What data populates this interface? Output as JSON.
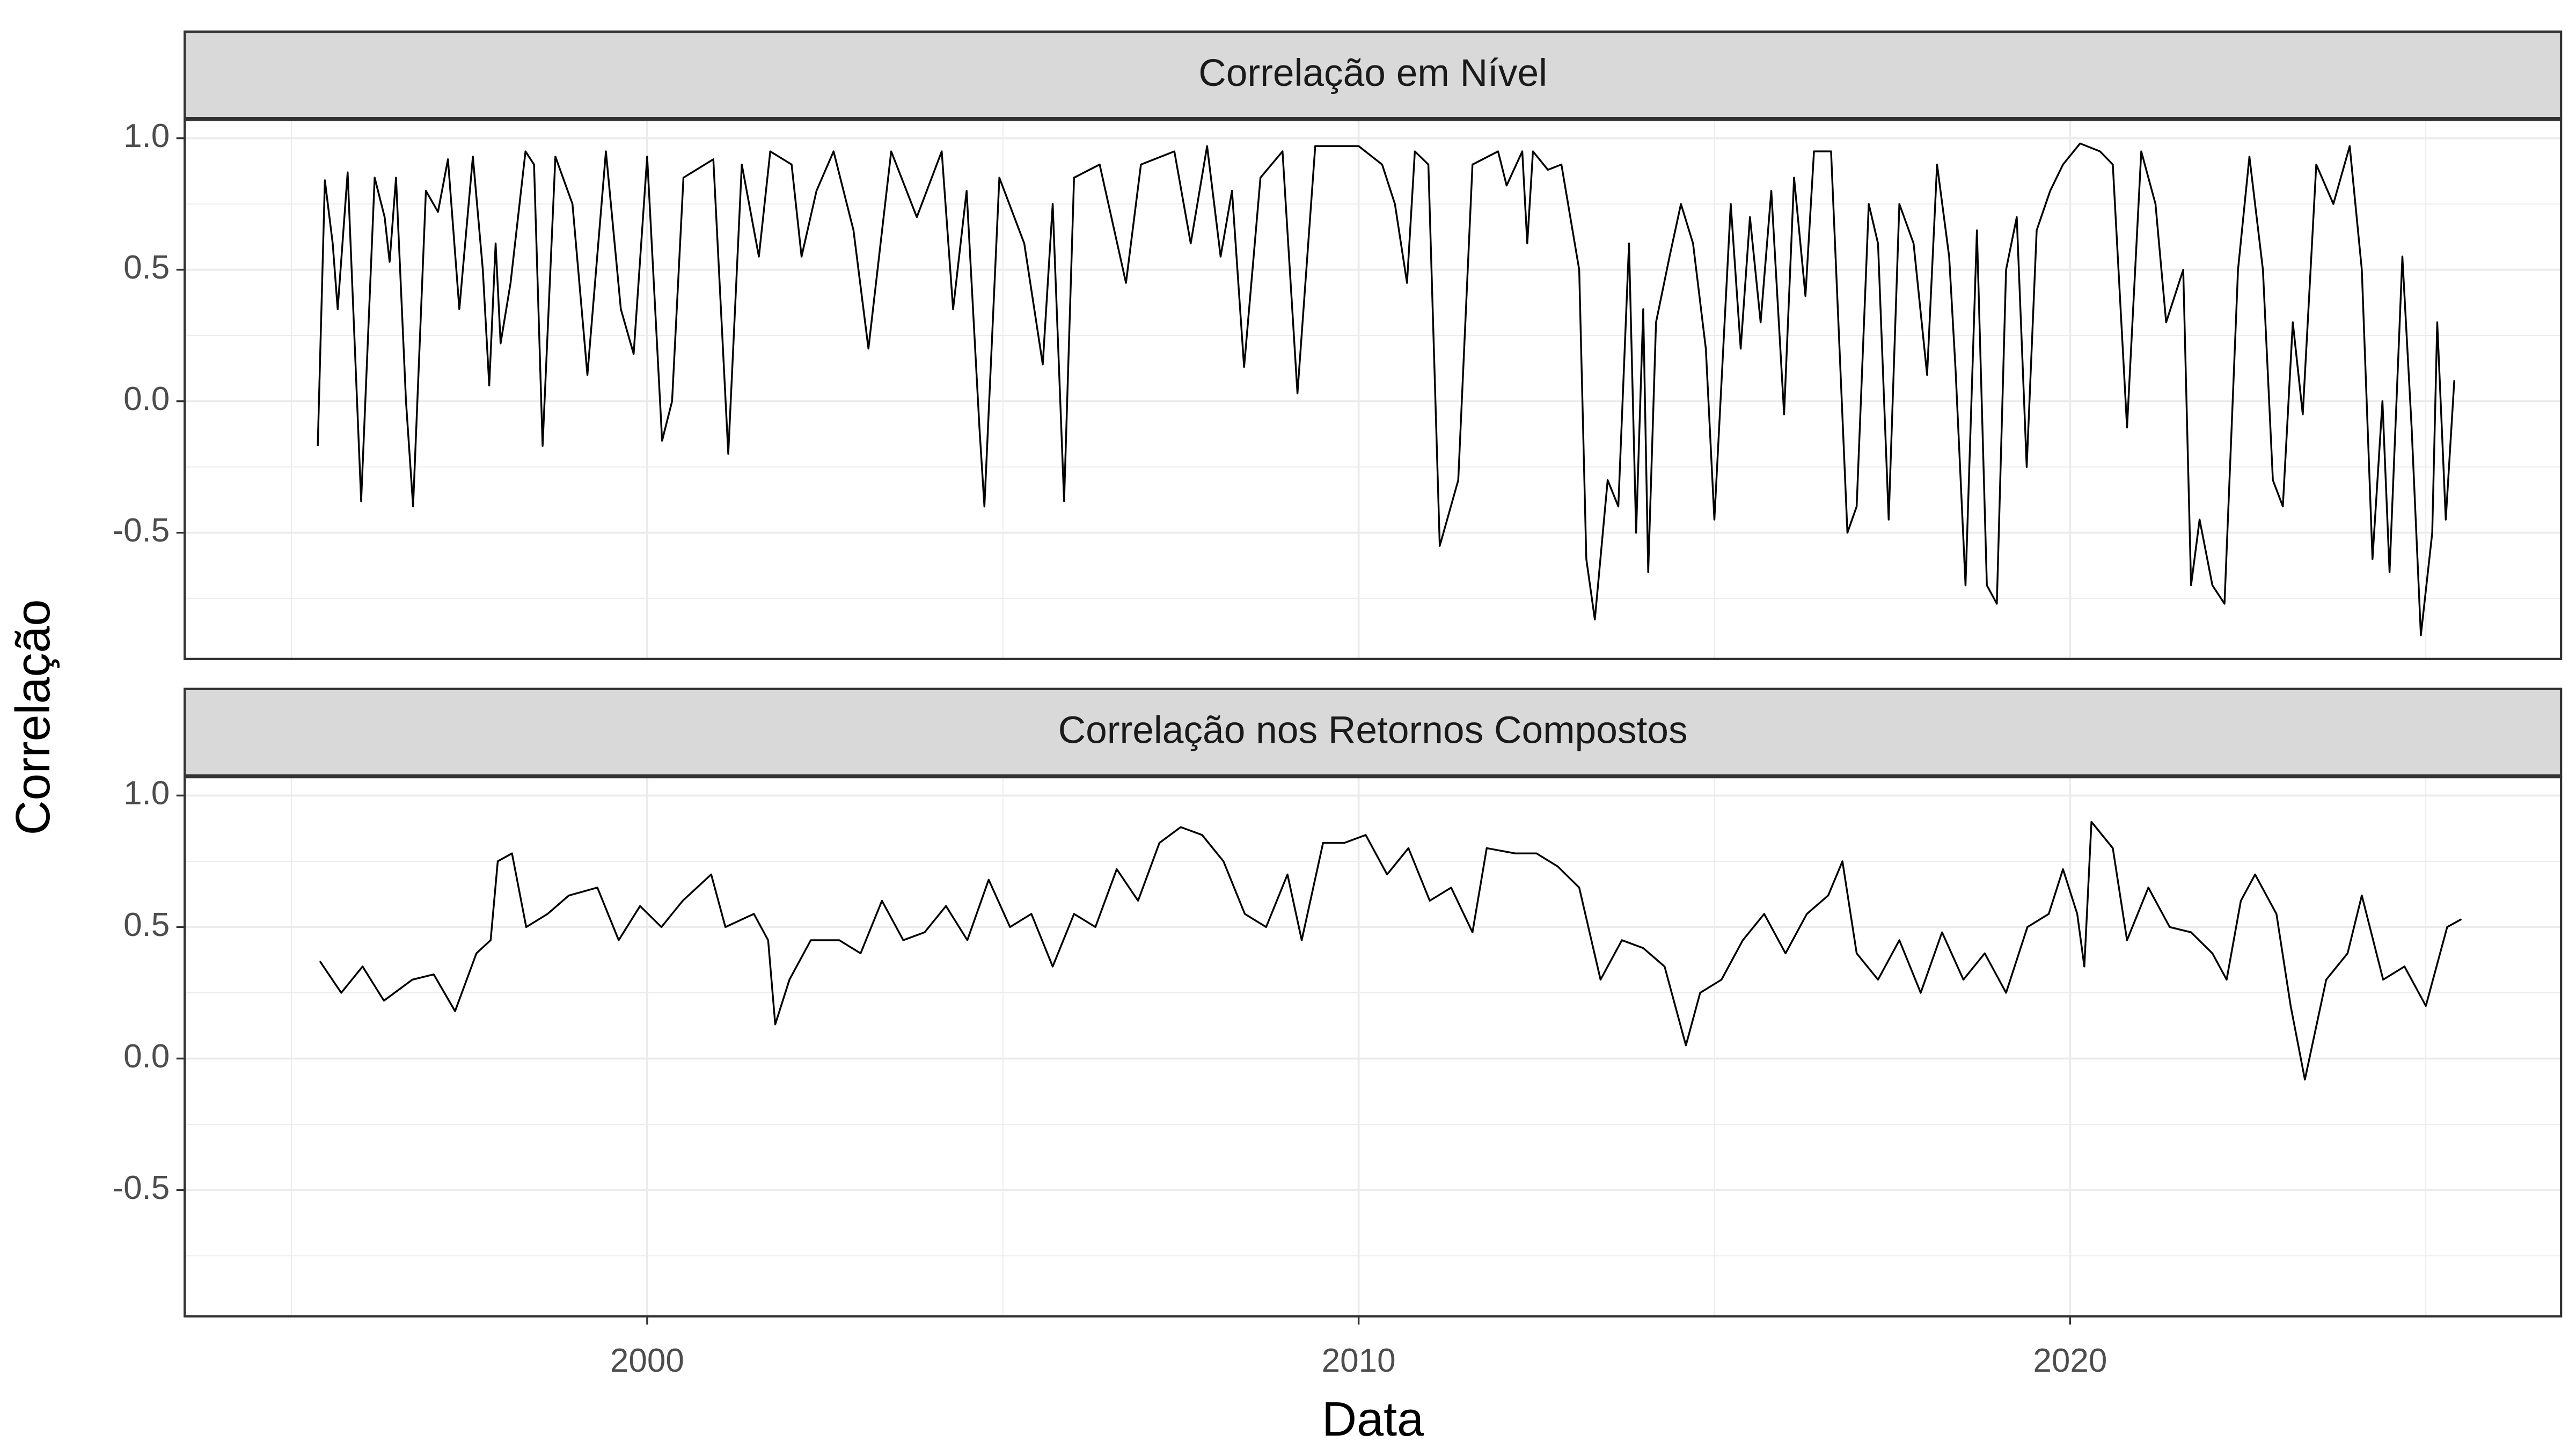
{
  "chart_data": [
    {
      "type": "line",
      "title": "Correlação em Nível",
      "ylabel": "Correlação",
      "color": "#000000",
      "xlim": [
        1993.5,
        2026.9
      ],
      "xticks": [
        2000,
        2010,
        2020
      ],
      "xminor": [
        1995,
        2005,
        2015,
        2025
      ],
      "ylim": [
        -0.98,
        1.07
      ],
      "yticks": [
        {
          "value": -0.5,
          "label": "-0.5"
        },
        {
          "value": 0,
          "label": "0.0"
        },
        {
          "value": 0.5,
          "label": "0.5"
        },
        {
          "value": 1,
          "label": "1.0"
        }
      ],
      "yminor": [
        -0.75,
        -0.25,
        0.25,
        0.75
      ],
      "grid": true,
      "x": [
        1995.37,
        1995.47,
        1995.58,
        1995.65,
        1995.79,
        1995.98,
        1996.17,
        1996.31,
        1996.38,
        1996.47,
        1996.61,
        1996.71,
        1996.89,
        1997.06,
        1997.2,
        1997.36,
        1997.55,
        1997.69,
        1997.78,
        1997.87,
        1997.94,
        1998.08,
        1998.29,
        1998.41,
        1998.53,
        1998.71,
        1998.95,
        1999.16,
        1999.42,
        1999.63,
        1999.81,
        2000.0,
        2000.21,
        2000.35,
        2000.51,
        2000.93,
        2001.14,
        2001.33,
        2001.57,
        2001.73,
        2002.03,
        2002.17,
        2002.38,
        2002.62,
        2002.9,
        2003.11,
        2003.43,
        2003.79,
        2004.14,
        2004.3,
        2004.49,
        2004.67,
        2004.74,
        2004.95,
        2005.3,
        2005.56,
        2005.7,
        2005.86,
        2006.0,
        2006.36,
        2006.73,
        2006.94,
        2007.41,
        2007.64,
        2007.87,
        2008.06,
        2008.22,
        2008.39,
        2008.62,
        2008.93,
        2009.14,
        2009.39,
        2010.0,
        2010.33,
        2010.51,
        2010.68,
        2010.79,
        2010.98,
        2011.14,
        2011.4,
        2011.5,
        2011.6,
        2011.96,
        2012.08,
        2012.3,
        2012.37,
        2012.45,
        2012.66,
        2012.85,
        2013.1,
        2013.2,
        2013.32,
        2013.5,
        2013.65,
        2013.8,
        2013.9,
        2014.0,
        2014.07,
        2014.18,
        2014.37,
        2014.53,
        2014.7,
        2014.88,
        2015.0,
        2015.23,
        2015.37,
        2015.5,
        2015.65,
        2015.8,
        2015.98,
        2016.12,
        2016.28,
        2016.4,
        2016.64,
        2016.87,
        2017.0,
        2017.17,
        2017.3,
        2017.45,
        2017.6,
        2017.8,
        2017.99,
        2018.13,
        2018.3,
        2018.39,
        2018.53,
        2018.69,
        2018.83,
        2018.97,
        2019.1,
        2019.25,
        2019.39,
        2019.53,
        2019.72,
        2019.9,
        2020.14,
        2020.42,
        2020.6,
        2020.8,
        2021.0,
        2021.2,
        2021.35,
        2021.59,
        2021.7,
        2021.82,
        2022.0,
        2022.17,
        2022.36,
        2022.52,
        2022.71,
        2022.85,
        2022.99,
        2023.13,
        2023.27,
        2023.46,
        2023.7,
        2023.93,
        2024.1,
        2024.25,
        2024.39,
        2024.49,
        2024.67,
        2024.8,
        2024.93,
        2025.09,
        2025.16,
        2025.28,
        2025.4
      ],
      "values": [
        -0.17,
        0.84,
        0.6,
        0.35,
        0.87,
        -0.38,
        0.85,
        0.7,
        0.53,
        0.85,
        0.0,
        -0.4,
        0.8,
        0.72,
        0.92,
        0.35,
        0.93,
        0.5,
        0.06,
        0.6,
        0.22,
        0.45,
        0.95,
        0.9,
        -0.17,
        0.93,
        0.75,
        0.1,
        0.95,
        0.35,
        0.18,
        0.93,
        -0.15,
        0.0,
        0.85,
        0.92,
        -0.2,
        0.9,
        0.55,
        0.95,
        0.9,
        0.55,
        0.8,
        0.95,
        0.65,
        0.2,
        0.95,
        0.7,
        0.95,
        0.35,
        0.8,
        -0.1,
        -0.4,
        0.85,
        0.6,
        0.14,
        0.75,
        -0.38,
        0.85,
        0.9,
        0.45,
        0.9,
        0.95,
        0.6,
        0.97,
        0.55,
        0.8,
        0.13,
        0.85,
        0.95,
        0.03,
        0.97,
        0.97,
        0.9,
        0.75,
        0.45,
        0.95,
        0.9,
        -0.55,
        -0.3,
        0.3,
        0.9,
        0.95,
        0.82,
        0.95,
        0.6,
        0.95,
        0.88,
        0.9,
        0.5,
        -0.6,
        -0.83,
        -0.3,
        -0.4,
        0.6,
        -0.5,
        0.35,
        -0.65,
        0.3,
        0.55,
        0.75,
        0.6,
        0.2,
        -0.45,
        0.75,
        0.2,
        0.7,
        0.3,
        0.8,
        -0.05,
        0.85,
        0.4,
        0.95,
        0.95,
        -0.5,
        -0.4,
        0.75,
        0.6,
        -0.45,
        0.75,
        0.6,
        0.1,
        0.9,
        0.55,
        0.12,
        -0.7,
        0.65,
        -0.7,
        -0.77,
        0.5,
        0.7,
        -0.25,
        0.65,
        0.8,
        0.9,
        0.98,
        0.95,
        0.9,
        -0.1,
        0.95,
        0.75,
        0.3,
        0.5,
        -0.7,
        -0.45,
        -0.7,
        -0.77,
        0.5,
        0.93,
        0.5,
        -0.3,
        -0.4,
        0.3,
        -0.05,
        0.9,
        0.75,
        0.97,
        0.5,
        -0.6,
        0.0,
        -0.65,
        0.55,
        -0.1,
        -0.89,
        -0.5,
        0.3,
        -0.45,
        0.08
      ]
    },
    {
      "type": "line",
      "title": "Correlação nos Retornos Compostos",
      "xlabel": "Data",
      "color": "#000000",
      "xlim": [
        1993.5,
        2026.9
      ],
      "xticks": [
        2000,
        2010,
        2020
      ],
      "xminor": [
        1995,
        2005,
        2015,
        2025
      ],
      "ylim": [
        -0.98,
        1.07
      ],
      "yticks": [
        {
          "value": -0.5,
          "label": "-0.5"
        },
        {
          "value": 0,
          "label": "0.0"
        },
        {
          "value": 0.5,
          "label": "0.5"
        },
        {
          "value": 1,
          "label": "1.0"
        }
      ],
      "yminor": [
        -0.75,
        -0.25,
        0.25,
        0.75
      ],
      "grid": true,
      "x": [
        1995.4,
        1995.7,
        1996.0,
        1996.3,
        1996.7,
        1997.0,
        1997.3,
        1997.6,
        1997.8,
        1997.9,
        1998.1,
        1998.3,
        1998.6,
        1998.9,
        1999.3,
        1999.6,
        1999.9,
        2000.2,
        2000.5,
        2000.9,
        2001.1,
        2001.5,
        2001.7,
        2001.8,
        2002.0,
        2002.3,
        2002.7,
        2003.0,
        2003.3,
        2003.6,
        2003.9,
        2004.2,
        2004.5,
        2004.8,
        2005.1,
        2005.4,
        2005.7,
        2006.0,
        2006.3,
        2006.6,
        2006.9,
        2007.2,
        2007.5,
        2007.8,
        2008.1,
        2008.4,
        2008.7,
        2009.0,
        2009.2,
        2009.5,
        2009.8,
        2010.1,
        2010.4,
        2010.7,
        2011.0,
        2011.3,
        2011.6,
        2011.8,
        2012.2,
        2012.5,
        2012.8,
        2013.1,
        2013.4,
        2013.7,
        2014.0,
        2014.3,
        2014.6,
        2014.8,
        2015.1,
        2015.4,
        2015.7,
        2016.0,
        2016.3,
        2016.6,
        2016.8,
        2017.0,
        2017.3,
        2017.6,
        2017.9,
        2018.2,
        2018.5,
        2018.8,
        2019.1,
        2019.4,
        2019.7,
        2019.9,
        2020.1,
        2020.2,
        2020.3,
        2020.6,
        2020.8,
        2021.1,
        2021.4,
        2021.7,
        2022.0,
        2022.2,
        2022.4,
        2022.6,
        2022.9,
        2023.1,
        2023.3,
        2023.6,
        2023.9,
        2024.1,
        2024.4,
        2024.7,
        2025.0,
        2025.3,
        2025.5
      ],
      "values": [
        0.37,
        0.25,
        0.35,
        0.22,
        0.3,
        0.32,
        0.18,
        0.4,
        0.45,
        0.75,
        0.78,
        0.5,
        0.55,
        0.62,
        0.65,
        0.45,
        0.58,
        0.5,
        0.6,
        0.7,
        0.5,
        0.55,
        0.45,
        0.13,
        0.3,
        0.45,
        0.45,
        0.4,
        0.6,
        0.45,
        0.48,
        0.58,
        0.45,
        0.68,
        0.5,
        0.55,
        0.35,
        0.55,
        0.5,
        0.72,
        0.6,
        0.82,
        0.88,
        0.85,
        0.75,
        0.55,
        0.5,
        0.7,
        0.45,
        0.82,
        0.82,
        0.85,
        0.7,
        0.8,
        0.6,
        0.65,
        0.48,
        0.8,
        0.78,
        0.78,
        0.73,
        0.65,
        0.3,
        0.45,
        0.42,
        0.35,
        0.05,
        0.25,
        0.3,
        0.45,
        0.55,
        0.4,
        0.55,
        0.62,
        0.75,
        0.4,
        0.3,
        0.45,
        0.25,
        0.48,
        0.3,
        0.4,
        0.25,
        0.5,
        0.55,
        0.72,
        0.55,
        0.35,
        0.9,
        0.8,
        0.45,
        0.65,
        0.5,
        0.48,
        0.4,
        0.3,
        0.6,
        0.7,
        0.55,
        0.2,
        -0.08,
        0.3,
        0.4,
        0.62,
        0.3,
        0.35,
        0.2,
        0.5,
        0.53
      ]
    }
  ]
}
